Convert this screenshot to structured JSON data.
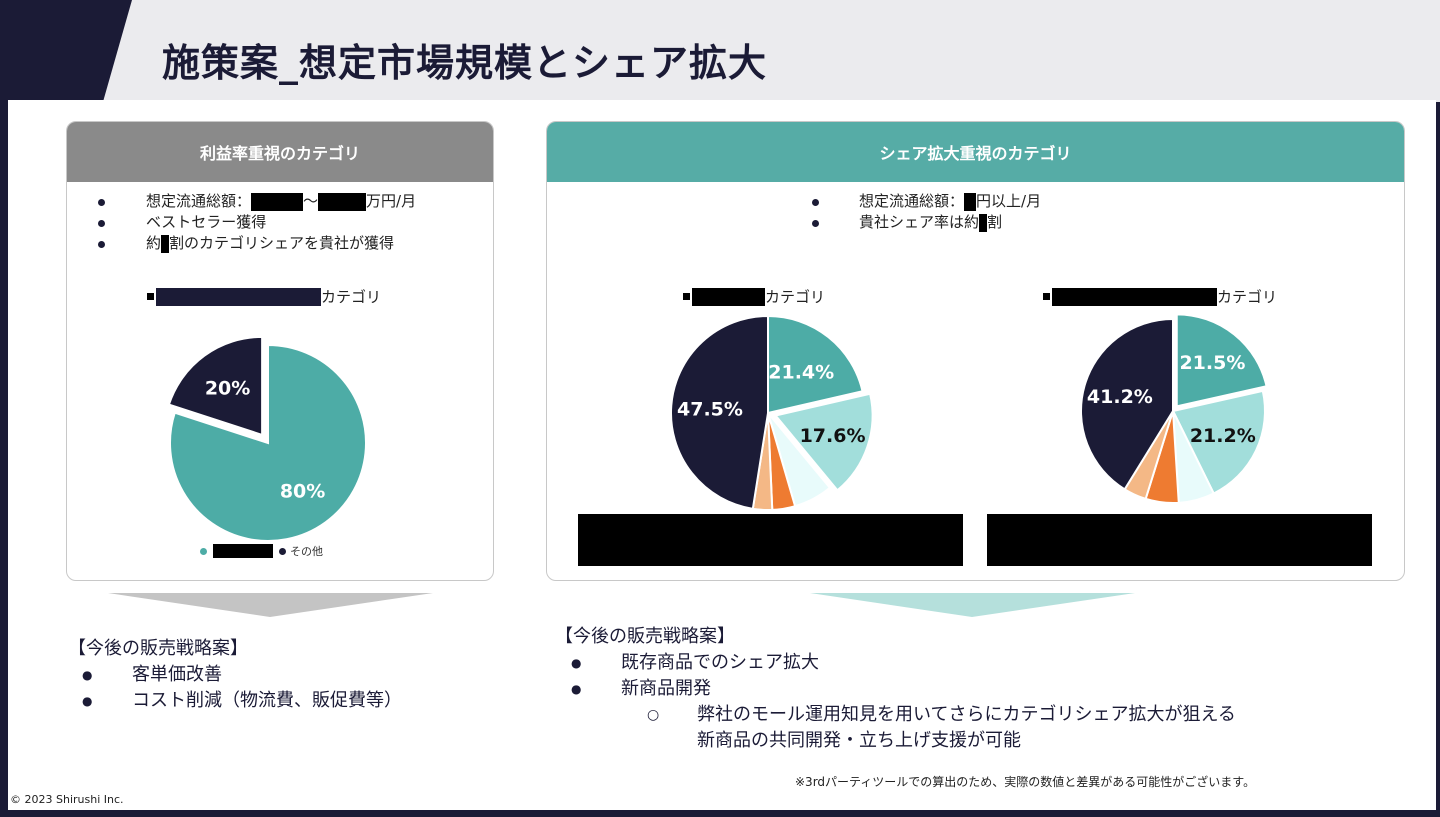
{
  "title": "施策案_想定市場規模とシェア拡大",
  "left_card": {
    "heading": "利益率重視のカテゴリ",
    "bullets": [
      "想定流通総額：",
      "〜",
      "万円/月",
      "ベストセラー獲得",
      "約",
      "割のカテゴリシェアを貴社が獲得"
    ],
    "category_suffix": "カテゴリ",
    "legend_other": "その他",
    "color": "#8a8a8a"
  },
  "right_card": {
    "heading": "シェア拡大重視のカテゴリ",
    "bullet1_prefix": "想定流通総額：",
    "bullet1_suffix": "円以上/月",
    "bullet2_prefix": "貴社シェア率は約",
    "bullet2_suffix": "割",
    "category_suffix": "カテゴリ",
    "color": "#56aca6"
  },
  "chart_data": [
    {
      "type": "pie",
      "title": "カテゴリ (利益率重視)",
      "slices": [
        {
          "label": "",
          "value": 80,
          "text": "80%",
          "color": "#4daca6"
        },
        {
          "label": "その他",
          "value": 20,
          "text": "20%",
          "color": "#1b1b36"
        }
      ]
    },
    {
      "type": "pie",
      "title": "カテゴリ (シェア拡大 1)",
      "slices": [
        {
          "value": 21.4,
          "text": "21.4%",
          "color": "#4daca6"
        },
        {
          "value": 17.6,
          "text": "17.6%",
          "color": "#a2dedb"
        },
        {
          "value": 6.5,
          "text": "",
          "color": "#e8fbfb"
        },
        {
          "value": 3.8,
          "text": "",
          "color": "#ee7b31"
        },
        {
          "value": 3.2,
          "text": "",
          "color": "#f4b886"
        },
        {
          "value": 47.5,
          "text": "47.5%",
          "color": "#1b1b36"
        }
      ]
    },
    {
      "type": "pie",
      "title": "カテゴリ (シェア拡大 2)",
      "slices": [
        {
          "value": 21.5,
          "text": "21.5%",
          "color": "#4daca6"
        },
        {
          "value": 21.2,
          "text": "21.2%",
          "color": "#a2dedb"
        },
        {
          "value": 6.3,
          "text": "",
          "color": "#e8fbfb"
        },
        {
          "value": 5.8,
          "text": "",
          "color": "#ee7b31"
        },
        {
          "value": 4.0,
          "text": "",
          "color": "#f4b886"
        },
        {
          "value": 41.2,
          "text": "41.2%",
          "color": "#1b1b36"
        }
      ]
    }
  ],
  "left_strategy": {
    "heading": "【今後の販売戦略案】",
    "items": [
      "客単価改善",
      "コスト削減（物流費、販促費等）"
    ]
  },
  "right_strategy": {
    "heading": "【今後の販売戦略案】",
    "items": [
      "既存商品でのシェア拡大",
      "新商品開発"
    ],
    "sub_items": [
      "弊社のモール運用知見を用いてさらにカテゴリシェア拡大が狙える",
      "新商品の共同開発・立ち上げ支援が可能"
    ]
  },
  "note": "※3rdパーティツールでの算出のため、実際の数値と差異がある可能性がございます。",
  "footer": "© 2023 Shirushi Inc."
}
